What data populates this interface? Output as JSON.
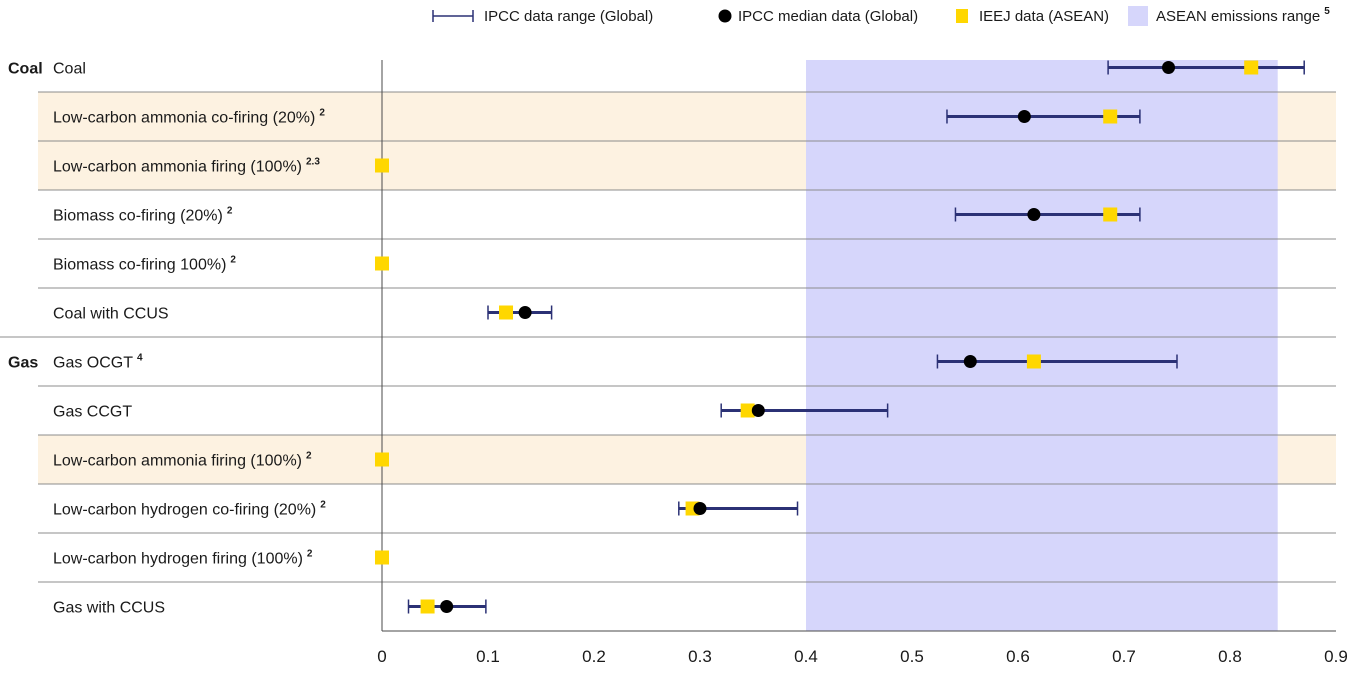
{
  "chart_data": {
    "type": "scatter",
    "title": "",
    "xlabel": "",
    "ylabel": "",
    "xlim": [
      0,
      0.9
    ],
    "x_ticks": [
      "0",
      "0.1",
      "0.2",
      "0.3",
      "0.4",
      "0.5",
      "0.6",
      "0.7",
      "0.8",
      "0.9"
    ],
    "shaded_range": {
      "name": "ASEAN emissions range",
      "sup": "5",
      "x_range": [
        0.4,
        0.845
      ],
      "color": "#d6d6fb"
    },
    "legend": {
      "position": "top-right",
      "entries": [
        {
          "label": "IPCC data range (Global)",
          "marker": "range-bar",
          "color": "#2b3175"
        },
        {
          "label": "IPCC median data (Global)",
          "marker": "circle",
          "color": "#000000"
        },
        {
          "label": "IEEJ data (ASEAN)",
          "marker": "square",
          "color": "#ffd700"
        },
        {
          "label": "ASEAN emissions range",
          "sup": "5",
          "marker": "shaded-area",
          "color": "#d6d6fb"
        }
      ]
    },
    "groups": [
      {
        "label": "Coal",
        "first_row": 0
      },
      {
        "label": "Gas",
        "first_row": 6
      }
    ],
    "rows": [
      {
        "label": "Coal",
        "sup": "",
        "highlight": false,
        "ipcc_min": 0.685,
        "ipcc_max": 0.87,
        "ipcc_median": 0.742,
        "ieej": 0.82
      },
      {
        "label": "Low-carbon ammonia co-firing (20%)",
        "sup": "2",
        "highlight": true,
        "ipcc_min": 0.533,
        "ipcc_max": 0.715,
        "ipcc_median": 0.606,
        "ieej": 0.687
      },
      {
        "label": "Low-carbon ammonia firing (100%)",
        "sup": "2.3",
        "highlight": true,
        "ipcc_min": null,
        "ipcc_max": null,
        "ipcc_median": null,
        "ieej": 0.0
      },
      {
        "label": "Biomass co-firing (20%)",
        "sup": "2",
        "highlight": false,
        "ipcc_min": 0.541,
        "ipcc_max": 0.715,
        "ipcc_median": 0.615,
        "ieej": 0.687
      },
      {
        "label": "Biomass co-firing 100%)",
        "sup": "2",
        "highlight": false,
        "ipcc_min": null,
        "ipcc_max": null,
        "ipcc_median": null,
        "ieej": 0.0
      },
      {
        "label": "Coal with CCUS",
        "sup": "",
        "highlight": false,
        "ipcc_min": 0.1,
        "ipcc_max": 0.16,
        "ipcc_median": 0.135,
        "ieej": 0.117
      },
      {
        "label": "Gas OCGT",
        "sup": "4",
        "highlight": false,
        "ipcc_min": 0.524,
        "ipcc_max": 0.75,
        "ipcc_median": 0.555,
        "ieej": 0.615
      },
      {
        "label": "Gas CCGT",
        "sup": "",
        "highlight": false,
        "ipcc_min": 0.32,
        "ipcc_max": 0.477,
        "ipcc_median": 0.355,
        "ieej": 0.345
      },
      {
        "label": "Low-carbon ammonia firing (100%)",
        "sup": "2",
        "highlight": true,
        "ipcc_min": null,
        "ipcc_max": null,
        "ipcc_median": null,
        "ieej": 0.0
      },
      {
        "label": "Low-carbon hydrogen co-firing (20%)",
        "sup": "2",
        "highlight": false,
        "ipcc_min": 0.28,
        "ipcc_max": 0.392,
        "ipcc_median": 0.3,
        "ieej": 0.293
      },
      {
        "label": "Low-carbon hydrogen firing (100%)",
        "sup": "2",
        "highlight": false,
        "ipcc_min": null,
        "ipcc_max": null,
        "ipcc_median": null,
        "ieej": 0.0
      },
      {
        "label": "Gas with CCUS",
        "sup": "",
        "highlight": false,
        "ipcc_min": 0.025,
        "ipcc_max": 0.098,
        "ipcc_median": 0.061,
        "ieej": 0.043
      }
    ]
  }
}
